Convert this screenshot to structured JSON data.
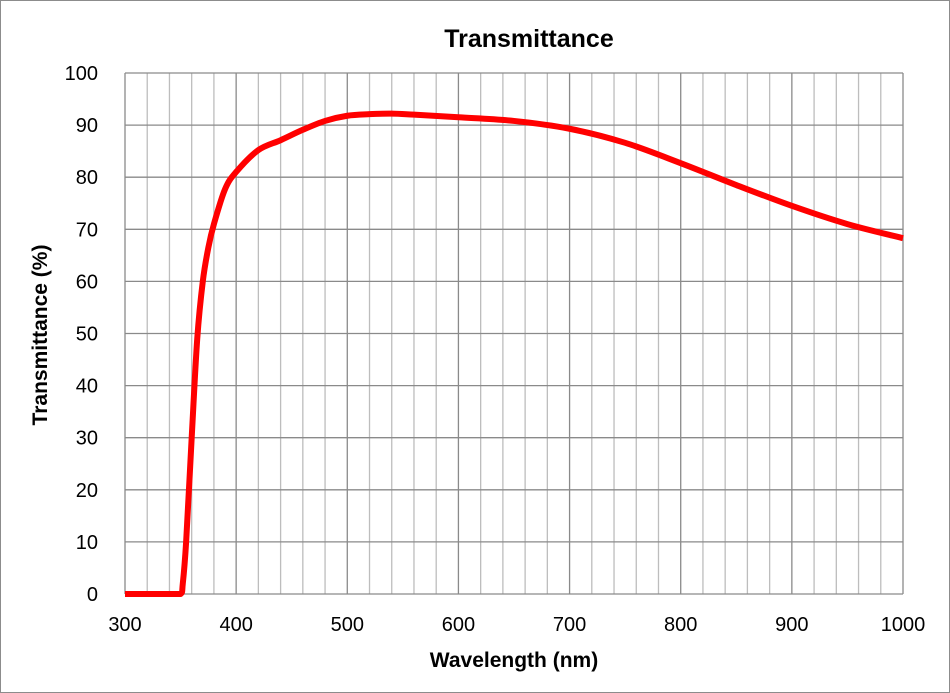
{
  "chart_data": {
    "type": "line",
    "title": "Transmittance",
    "xlabel": "Wavelength (nm)",
    "ylabel": "Transmittance (%)",
    "xlim": [
      300,
      1000
    ],
    "ylim": [
      0,
      100
    ],
    "x_ticks": [
      300,
      400,
      500,
      600,
      700,
      800,
      900,
      1000
    ],
    "y_ticks": [
      0,
      10,
      20,
      30,
      40,
      50,
      60,
      70,
      80,
      90,
      100
    ],
    "grid": true,
    "x_minor_grid_step": 20,
    "legend": "none",
    "series": [
      {
        "color": "#ff0000",
        "x": [
          300,
          320,
          340,
          350,
          352,
          355,
          360,
          365,
          370,
          375,
          380,
          390,
          400,
          420,
          440,
          460,
          480,
          500,
          520,
          540,
          560,
          600,
          650,
          700,
          750,
          800,
          850,
          900,
          950,
          1000
        ],
        "y": [
          0,
          0,
          0,
          0,
          2,
          10,
          30,
          49,
          60,
          66.5,
          71,
          77.7,
          81,
          85.2,
          87.1,
          89.1,
          90.8,
          91.8,
          92.1,
          92.2,
          92,
          91.5,
          90.8,
          89.3,
          86.6,
          82.7,
          78.5,
          74.5,
          71,
          68.3
        ]
      }
    ]
  }
}
